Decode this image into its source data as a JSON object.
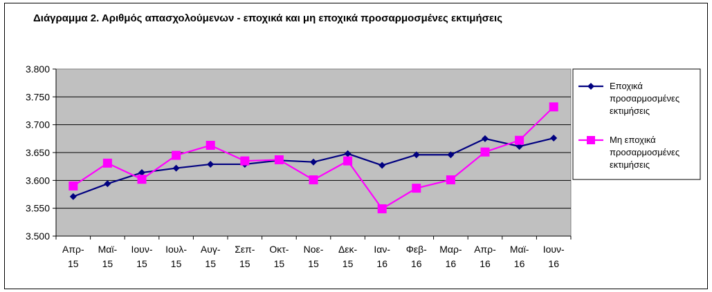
{
  "chart_data": {
    "type": "line",
    "title": "Διάγραμμα 2. Αριθμός απασχολούμενων - εποχικά και μη εποχικά προσαρμοσμένες εκτιμήσεις",
    "categories": [
      [
        "Απρ-",
        "15"
      ],
      [
        "Μαϊ-",
        "15"
      ],
      [
        "Ιουν-",
        "15"
      ],
      [
        "Ιουλ-",
        "15"
      ],
      [
        "Αυγ-",
        "15"
      ],
      [
        "Σεπ-",
        "15"
      ],
      [
        "Οκτ-",
        "15"
      ],
      [
        "Νοε-",
        "15"
      ],
      [
        "Δεκ-",
        "15"
      ],
      [
        "Ιαν-",
        "16"
      ],
      [
        "Φεβ-",
        "16"
      ],
      [
        "Μαρ-",
        "16"
      ],
      [
        "Απρ-",
        "16"
      ],
      [
        "Μαϊ-",
        "16"
      ],
      [
        "Ιουν-",
        "16"
      ]
    ],
    "y_ticks": [
      "3.500",
      "3.550",
      "3.600",
      "3.650",
      "3.700",
      "3.750",
      "3.800"
    ],
    "ylim": [
      3500,
      3800
    ],
    "grid": true,
    "legend_position": "right",
    "plot_background": "#c0c0c0",
    "series": [
      {
        "name_lines": [
          "Εποχικά",
          "προσαρμοσμένες",
          "εκτιμήσεις"
        ],
        "color": "#000080",
        "marker": "diamond",
        "values": [
          3571,
          3594,
          3614,
          3622,
          3629,
          3629,
          3636,
          3633,
          3648,
          3627,
          3646,
          3646,
          3675,
          3661,
          3676
        ]
      },
      {
        "name_lines": [
          "Μη εποχικά",
          "προσαρμοσμένες",
          "εκτιμήσεις"
        ],
        "color": "#ff00ff",
        "marker": "square",
        "values": [
          3590,
          3631,
          3602,
          3645,
          3663,
          3635,
          3637,
          3601,
          3635,
          3549,
          3586,
          3601,
          3651,
          3672,
          3732
        ]
      }
    ]
  }
}
